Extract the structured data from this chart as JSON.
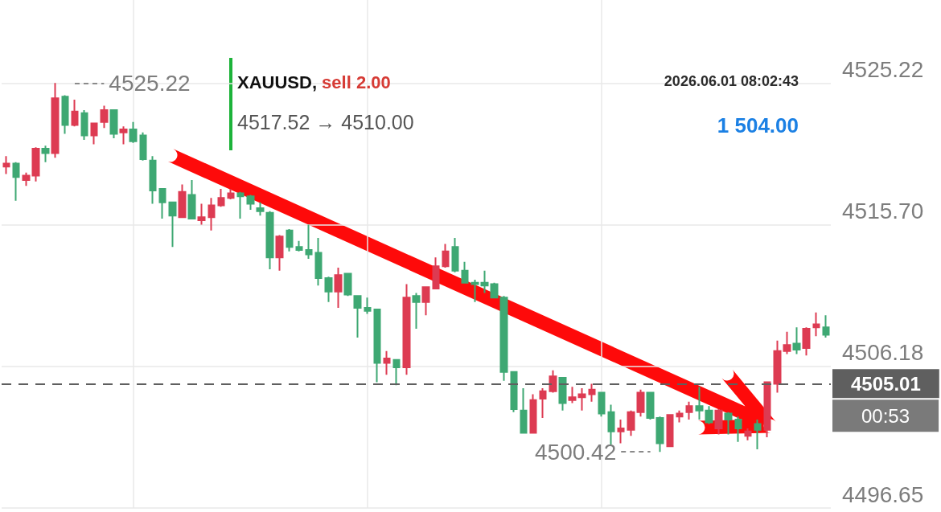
{
  "chart_data": {
    "type": "candlestick",
    "title": "XAUUSD, sell 2.00",
    "subtitle": "4517.52 → 4510.00",
    "categories": [
      null,
      null,
      null,
      null,
      null,
      null,
      null,
      null,
      null,
      null,
      null,
      null,
      null,
      null,
      null,
      null,
      null,
      null,
      null,
      null,
      null,
      null,
      null,
      null,
      null,
      null,
      null,
      null,
      null,
      null,
      null,
      null,
      null,
      null,
      null,
      null,
      null,
      null,
      null,
      null,
      null,
      null,
      null,
      null,
      null,
      null,
      null,
      null,
      null,
      null,
      null,
      null,
      null,
      null,
      null,
      null,
      null,
      null,
      null,
      null,
      null,
      null,
      null,
      null,
      null,
      null,
      null,
      null,
      null,
      null,
      null,
      null,
      null,
      null,
      null,
      null,
      null,
      null,
      null,
      null,
      null,
      null,
      null,
      null,
      null
    ],
    "ohlc": [
      [
        4519.6,
        4520.3,
        4519.1,
        4519.8
      ],
      [
        4519.8,
        4519.9,
        4517.3,
        4518.9
      ],
      [
        4518.7,
        4519.2,
        4518.3,
        4519.0
      ],
      [
        4519.0,
        4520.9,
        4518.6,
        4520.8
      ],
      [
        4520.8,
        4521.0,
        4519.9,
        4520.5
      ],
      [
        4520.5,
        4525.22,
        4520.2,
        4524.2
      ],
      [
        4524.3,
        4524.4,
        4521.8,
        4522.4
      ],
      [
        4522.4,
        4524.1,
        4522.3,
        4523.3
      ],
      [
        4523.2,
        4523.4,
        4521.4,
        4521.7
      ],
      [
        4521.7,
        4522.5,
        4521.1,
        4522.5
      ],
      [
        4522.6,
        4523.7,
        4522.2,
        4523.4
      ],
      [
        4523.4,
        4523.4,
        4521.5,
        4521.8
      ],
      [
        4521.9,
        4522.3,
        4521.1,
        4522.1
      ],
      [
        4522.1,
        4522.6,
        4521.2,
        4521.3
      ],
      [
        4521.7,
        4521.9,
        4520.0,
        4520.1
      ],
      [
        4520.0,
        4520.3,
        4517.1,
        4518.0
      ],
      [
        4518.1,
        4518.1,
        4516.1,
        4517.2
      ],
      [
        4517.2,
        4517.2,
        4514.2,
        4516.3
      ],
      [
        4516.2,
        4518.4,
        4516.2,
        4517.9
      ],
      [
        4517.7,
        4518.7,
        4516.1,
        4516.1
      ],
      [
        4516.0,
        4517.1,
        4515.7,
        4516.2
      ],
      [
        4516.2,
        4517.5,
        4515.3,
        4517.0
      ],
      [
        4517.0,
        4518.1,
        4516.9,
        4517.5
      ],
      [
        4517.5,
        4518.1,
        4517.4,
        4517.8
      ],
      [
        4517.8,
        4517.9,
        4516.1,
        4517.6
      ],
      [
        4517.6,
        4517.7,
        4516.7,
        4517.1
      ],
      [
        4516.8,
        4517.2,
        4516.3,
        4516.6
      ],
      [
        4516.5,
        4516.6,
        4512.7,
        4513.5
      ],
      [
        4513.5,
        4515.0,
        4512.6,
        4514.9
      ],
      [
        4515.3,
        4515.4,
        4513.9,
        4514.2
      ],
      [
        4514.2,
        4514.6,
        4513.9,
        4514.0
      ],
      [
        4514.0,
        4515.7,
        4513.4,
        4513.7
      ],
      [
        4513.8,
        4514.8,
        4511.6,
        4512.1
      ],
      [
        4512.1,
        4512.2,
        4510.5,
        4511.2
      ],
      [
        4511.2,
        4512.8,
        4510.1,
        4512.3
      ],
      [
        4512.4,
        4512.4,
        4510.9,
        4511.0
      ],
      [
        4510.9,
        4510.9,
        4508.1,
        4510.1
      ],
      [
        4510.1,
        4510.8,
        4509.7,
        4509.9
      ],
      [
        4510.0,
        4510.0,
        4505.1,
        4506.4
      ],
      [
        4506.4,
        4507.2,
        4505.6,
        4506.7
      ],
      [
        4506.6,
        4506.6,
        4504.9,
        4506.1
      ],
      [
        4506.1,
        4511.7,
        4505.6,
        4510.8
      ],
      [
        4510.9,
        4511.1,
        4508.7,
        4510.5
      ],
      [
        4510.5,
        4511.5,
        4509.6,
        4511.5
      ],
      [
        4511.4,
        4513.5,
        4511.4,
        4512.9
      ],
      [
        4512.9,
        4514.4,
        4512.8,
        4513.9
      ],
      [
        4514.2,
        4514.8,
        4512.5,
        4512.6
      ],
      [
        4512.6,
        4513.2,
        4511.8,
        4511.8
      ],
      [
        4511.8,
        4512.0,
        4510.5,
        4511.7
      ],
      [
        4511.8,
        4512.6,
        4511.1,
        4511.6
      ],
      [
        4511.7,
        4511.8,
        4510.8,
        4510.8
      ],
      [
        4510.8,
        4510.9,
        4505.2,
        4505.8
      ],
      [
        4505.8,
        4505.8,
        4503.1,
        4503.3
      ],
      [
        4503.2,
        4504.7,
        4501.7,
        4501.7
      ],
      [
        4501.7,
        4504.3,
        4501.7,
        4503.9
      ],
      [
        4504.0,
        4504.7,
        4502.7,
        4504.5
      ],
      [
        4504.5,
        4505.9,
        4504.4,
        4505.5
      ],
      [
        4505.4,
        4505.4,
        4503.2,
        4503.7
      ],
      [
        4503.9,
        4504.8,
        4503.7,
        4504.1
      ],
      [
        4504.1,
        4504.7,
        4503.2,
        4504.3
      ],
      [
        4504.3,
        4505.0,
        4503.8,
        4504.6
      ],
      [
        4504.4,
        4504.4,
        4502.8,
        4503.0
      ],
      [
        4503.1,
        4503.6,
        4500.9,
        4501.8
      ],
      [
        4501.8,
        4502.6,
        4501.0,
        4502.0
      ],
      [
        4501.9,
        4503.2,
        4501.5,
        4503.1
      ],
      [
        4503.1,
        4504.6,
        4502.8,
        4504.4
      ],
      [
        4504.4,
        4504.4,
        4502.6,
        4502.7
      ],
      [
        4502.7,
        4502.8,
        4500.42,
        4501.0
      ],
      [
        4500.8,
        4502.9,
        4500.8,
        4502.9
      ],
      [
        4502.8,
        4503.2,
        4502.4,
        4503.0
      ],
      [
        4503.1,
        4503.8,
        4502.6,
        4503.5
      ],
      [
        4503.5,
        4504.8,
        4502.6,
        4503.2
      ],
      [
        4503.2,
        4503.5,
        4502.3,
        4502.4
      ],
      [
        4502.0,
        4503.3,
        4501.6,
        4503.2
      ],
      [
        4503.0,
        4503.1,
        4501.6,
        4502.6
      ],
      [
        4502.6,
        4502.8,
        4501.1,
        4502.0
      ],
      [
        4501.5,
        4502.0,
        4501.2,
        4501.8
      ],
      [
        4502.3,
        4502.6,
        4500.6,
        4501.9
      ],
      [
        4501.9,
        4505.1,
        4501.4,
        4505.1
      ],
      [
        4505.0,
        4507.9,
        4504.4,
        4507.2
      ],
      [
        4507.2,
        4508.5,
        4507.0,
        4507.6
      ],
      [
        4507.7,
        4508.8,
        4507.0,
        4507.3
      ],
      [
        4507.4,
        4508.8,
        4506.9,
        4508.7
      ],
      [
        4508.8,
        4509.8,
        4508.2,
        4509.0
      ],
      [
        4508.8,
        4509.6,
        4508.1,
        4508.3
      ]
    ],
    "colors": [
      "#dd3b52",
      "#3ea873",
      "#dd3b52",
      "#dd3b52",
      "#3ea873",
      "#dd3b52",
      "#3ea873",
      "#dd3b52",
      "#3ea873",
      "#dd3b52",
      "#dd3b52",
      "#3ea873",
      "#dd3b52",
      "#3ea873",
      "#3ea873",
      "#3ea873",
      "#3ea873",
      "#3ea873",
      "#dd3b52",
      "#3ea873",
      "#dd3b52",
      "#dd3b52",
      "#dd3b52",
      "#dd3b52",
      "#3ea873",
      "#3ea873",
      "#3ea873",
      "#3ea873",
      "#dd3b52",
      "#3ea873",
      "#3ea873",
      "#3ea873",
      "#3ea873",
      "#3ea873",
      "#dd3b52",
      "#3ea873",
      "#3ea873",
      "#3ea873",
      "#3ea873",
      "#dd3b52",
      "#3ea873",
      "#dd3b52",
      "#3ea873",
      "#dd3b52",
      "#dd3b52",
      "#dd3b52",
      "#3ea873",
      "#3ea873",
      "#3ea873",
      "#3ea873",
      "#3ea873",
      "#3ea873",
      "#3ea873",
      "#3ea873",
      "#dd3b52",
      "#dd3b52",
      "#dd3b52",
      "#3ea873",
      "#dd3b52",
      "#dd3b52",
      "#dd3b52",
      "#3ea873",
      "#3ea873",
      "#dd3b52",
      "#dd3b52",
      "#dd3b52",
      "#3ea873",
      "#3ea873",
      "#dd3b52",
      "#dd3b52",
      "#dd3b52",
      "#3ea873",
      "#3ea873",
      "#dd3b52",
      "#3ea873",
      "#3ea873",
      "#dd3b52",
      "#3ea873",
      "#dd3b52",
      "#dd3b52",
      "#dd3b52",
      "#3ea873",
      "#dd3b52",
      "#dd3b52",
      "#3ea873"
    ],
    "ylim": [
      4496.65,
      4530.8
    ],
    "yticks": [
      4496.65,
      4506.18,
      {
        "value": 4515.7,
        "label": "4515.70"
      },
      4525.22
    ],
    "grid": true,
    "tick_labels": "y",
    "ref_lines": [
      {
        "axis": "y",
        "value": 4505.01,
        "label": "4505.01",
        "color": "#5f5f5f",
        "line_style": "dashed"
      }
    ],
    "annotations": [
      "2026.06.01 08:02:43",
      "1 504.00",
      "00:53",
      "4525.22",
      "4500.42"
    ]
  }
}
